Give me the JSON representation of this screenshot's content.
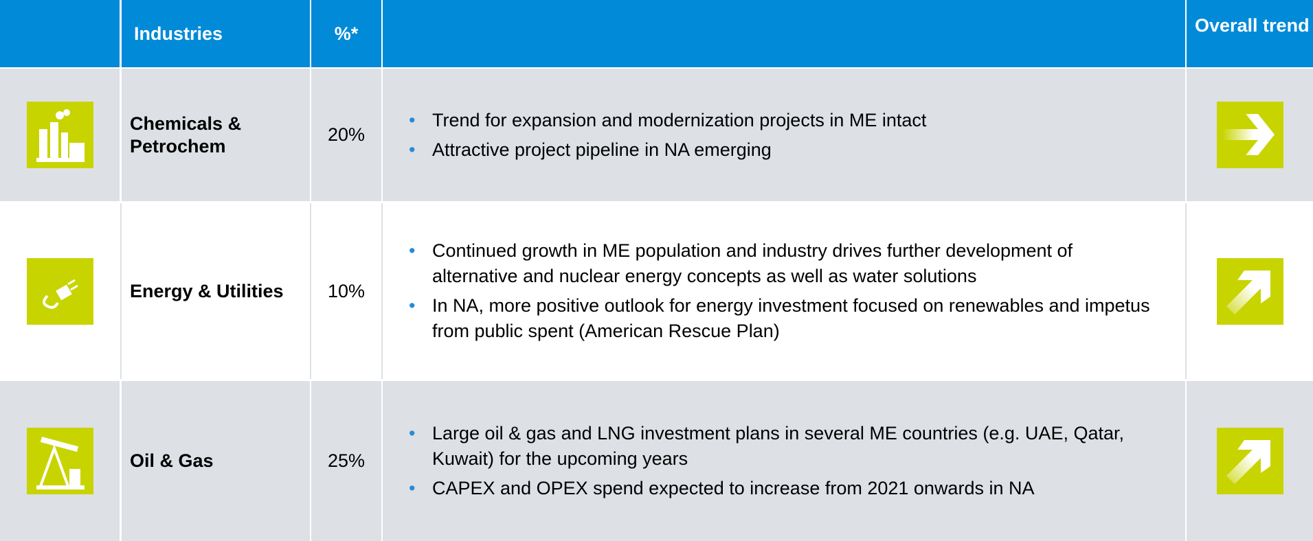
{
  "header": {
    "industries": "Industries",
    "percent": "%*",
    "trend": "Overall trend"
  },
  "rows": [
    {
      "name": "Chemicals & Petrochem",
      "percent": "20%",
      "bullets": [
        "Trend for expansion and modernization projects in ME intact",
        "Attractive project pipeline in NA emerging"
      ]
    },
    {
      "name": "Energy & Utilities",
      "percent": "10%",
      "bullets": [
        "Continued growth in ME population and industry drives further development of alternative and nuclear energy concepts as well as water solutions",
        "In NA, more positive outlook for energy investment focused on renewables and impetus from public spent (American Rescue Plan)"
      ]
    },
    {
      "name": "Oil & Gas",
      "percent": "25%",
      "bullets": [
        "Large oil & gas and LNG investment plans in several ME countries (e.g. UAE, Qatar, Kuwait) for the upcoming years",
        "CAPEX and OPEX spend expected to increase from 2021 onwards in NA"
      ]
    }
  ]
}
